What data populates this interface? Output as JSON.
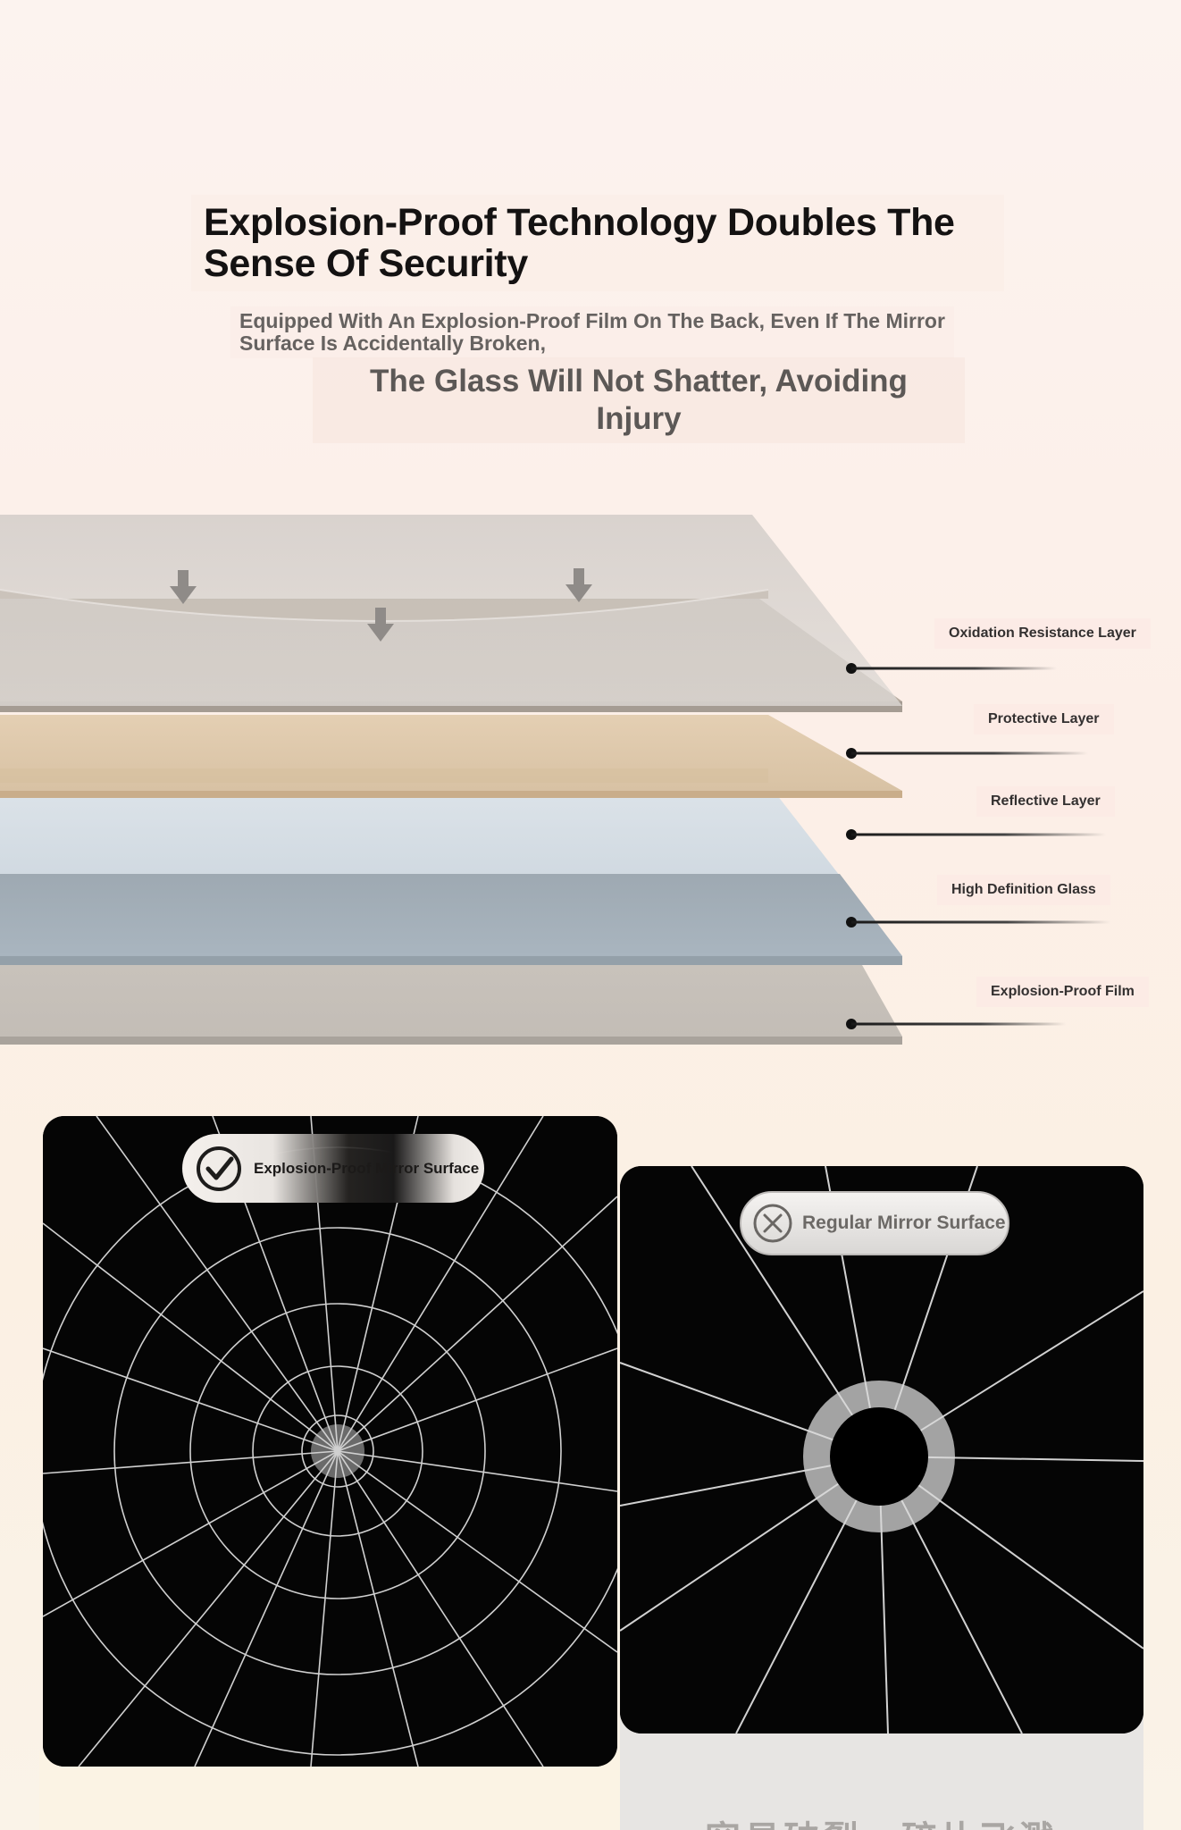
{
  "headline": "Explosion-Proof Technology Doubles The Sense Of Security",
  "subheading_line1": "Equipped With An Explosion-Proof Film On The Back, Even If The Mirror Surface Is Accidentally Broken,",
  "subheading_line2": "The Glass Will Not Shatter, Avoiding Injury",
  "layers": [
    {
      "label": "Oxidation Resistance Layer",
      "color": "#c9c4c0"
    },
    {
      "label": "Protective Layer",
      "color": "#bdb1a5"
    },
    {
      "label": "Reflective Layer",
      "color": "#e0cbb0"
    },
    {
      "label": "High Definition Glass",
      "color": "#d2dce4"
    },
    {
      "label": "Explosion-Proof Film",
      "color": "#ccc6bf"
    }
  ],
  "comparison": {
    "left": {
      "label": "Explosion-Proof Mirror Surface",
      "icon": "check-circle-icon"
    },
    "right": {
      "label": "Regular Mirror Surface",
      "icon": "x-circle-icon"
    },
    "right_caption": "容易破裂，碎片飞溅"
  }
}
